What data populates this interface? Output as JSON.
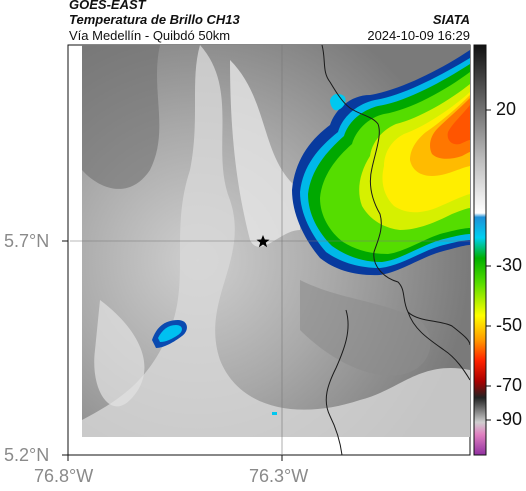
{
  "header": {
    "satellite": "GOES-EAST",
    "product": "Temperatura de Brillo CH13",
    "region": "Vía Medellín - Quibdó 50km",
    "agency": "SIATA",
    "timestamp": "2024-10-09 16:29"
  },
  "map": {
    "lat_labels": [
      "5.7°N",
      "5.2°N"
    ],
    "lon_labels": [
      "76.8°W",
      "76.3°W"
    ],
    "marker": "star-marker"
  },
  "colorbar": {
    "labels": [
      "20",
      "-30",
      "-50",
      "-70",
      "-90"
    ]
  }
}
